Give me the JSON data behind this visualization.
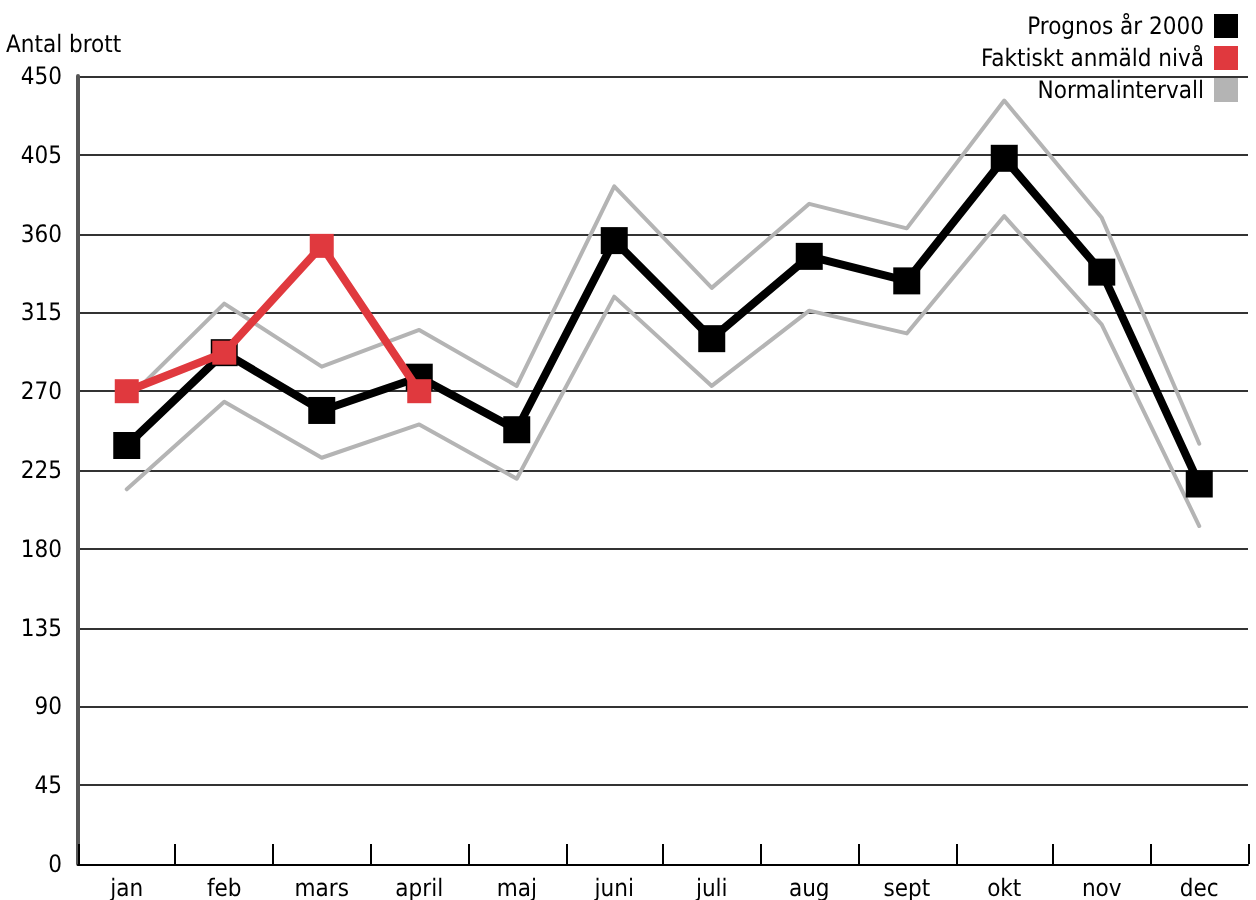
{
  "chart_data": {
    "type": "line",
    "ylabel": "Antal brott",
    "categories": [
      "jan",
      "feb",
      "mars",
      "april",
      "maj",
      "juni",
      "juli",
      "aug",
      "sept",
      "okt",
      "nov",
      "dec"
    ],
    "series": [
      {
        "name": "Prognos år 2000",
        "color": "#000000",
        "marker": "square",
        "values": [
          239,
          292,
          259,
          278,
          248,
          356,
          300,
          347,
          333,
          403,
          338,
          217
        ]
      },
      {
        "name": "Faktiskt anmäld nivå",
        "color": "#e0393e",
        "marker": "square",
        "values": [
          270,
          292,
          353,
          270,
          null,
          null,
          null,
          null,
          null,
          null,
          null,
          null
        ]
      },
      {
        "name": "Normalintervall",
        "color": "#b4b4b4",
        "marker": "none",
        "values": [
          265,
          320,
          284,
          305,
          273,
          387,
          329,
          377,
          363,
          436,
          369,
          240
        ]
      },
      {
        "color": "#b4b4b4",
        "marker": "none",
        "values": [
          214,
          264,
          232,
          251,
          220,
          324,
          273,
          316,
          303,
          370,
          308,
          193
        ]
      }
    ],
    "ylim": [
      0,
      450
    ],
    "yticks": [
      0,
      45,
      90,
      135,
      180,
      225,
      270,
      315,
      360,
      405,
      450
    ],
    "grid": "y",
    "legend": "top right",
    "line_style": "solid"
  }
}
